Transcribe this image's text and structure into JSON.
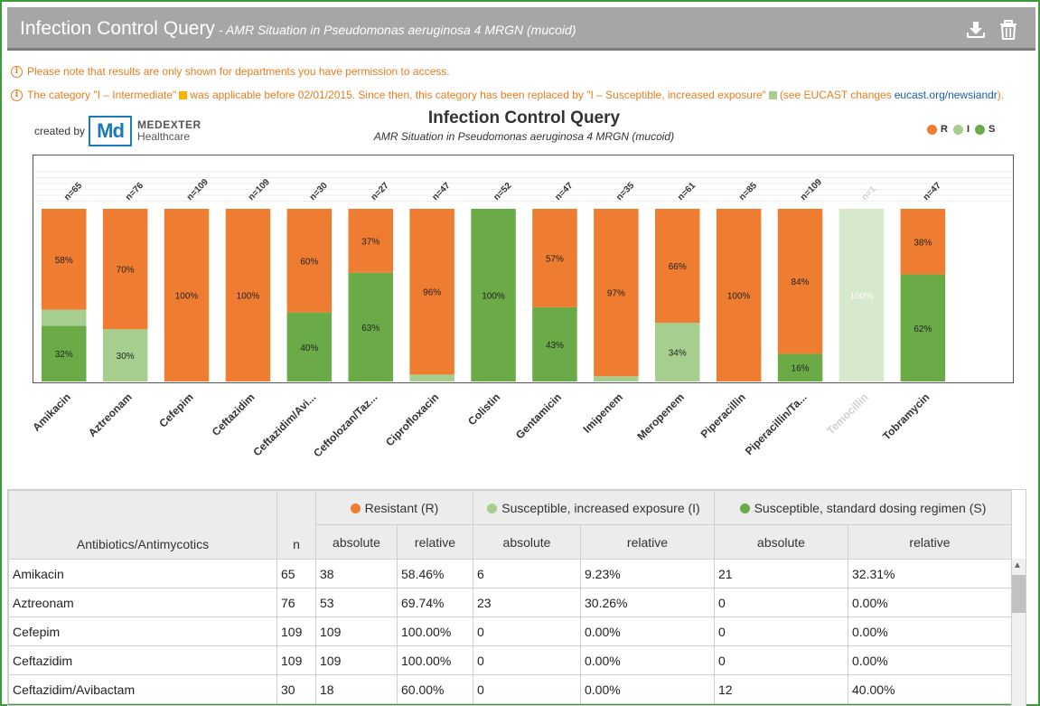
{
  "header": {
    "title": "Infection Control Query",
    "subtitle": "- AMR Situation in Pseudomonas aeruginosa 4 MRGN (mucoid)",
    "download_icon": "download-icon",
    "delete_icon": "trash-icon"
  },
  "notes": {
    "permission": "Please note that results are only shown for departments you have permission to access.",
    "category_a": "The category \"I – Intermediate\"",
    "category_b": "was applicable before 02/01/2015. Since then, this category has been replaced by \"I – Susceptible, increased exposure\"",
    "category_c": "(see EUCAST changes",
    "link": "eucast.org/newsiandr",
    "category_d": ")."
  },
  "brand": {
    "created_by": "created by",
    "logo_mark": "Md",
    "name_line1": "MEDEXTER",
    "name_line2": "Healthcare"
  },
  "colors": {
    "resistant": "#ef7d31",
    "intermediate": "#a6cf8f",
    "susceptible": "#6aab47",
    "intermediate_note": "#f4b400"
  },
  "chart_data": {
    "type": "bar",
    "title": "Infection Control Query",
    "subtitle": "AMR Situation in Pseudomonas aeruginosa 4 MRGN (mucoid)",
    "stacked": true,
    "legend": {
      "position": "top-right",
      "items": [
        "R",
        "I",
        "S"
      ]
    },
    "categories": [
      "Amikacin",
      "Aztreonam",
      "Cefepim",
      "Ceftazidim",
      "Ceftazidim/Avi...",
      "Ceftolozan/Taz...",
      "Ciprofloxacin",
      "Colistin",
      "Gentamicin",
      "Imipenem",
      "Meropenem",
      "Piperacillin",
      "Piperacillin/Ta...",
      "Temocillin",
      "Tobramycin"
    ],
    "n_labels": [
      "n=65",
      "n=76",
      "n=109",
      "n=109",
      "n=30",
      "n=27",
      "n=47",
      "n=52",
      "n=47",
      "n=35",
      "n=61",
      "n=85",
      "n=109",
      "n=1",
      "n=47"
    ],
    "disabled": [
      false,
      false,
      false,
      false,
      false,
      false,
      false,
      false,
      false,
      false,
      false,
      false,
      false,
      true,
      false
    ],
    "series": [
      {
        "name": "R",
        "values": [
          58.46,
          69.74,
          100,
          100,
          60,
          37,
          96,
          0,
          57,
          97,
          66,
          100,
          84,
          0,
          38
        ],
        "labels": [
          "58%",
          "70%",
          "100%",
          "100%",
          "60%",
          "37%",
          "96%",
          "",
          "57%",
          "97%",
          "66%",
          "100%",
          "84%",
          "",
          "38%"
        ]
      },
      {
        "name": "I",
        "values": [
          9.23,
          30.26,
          0,
          0,
          0,
          0,
          4,
          0,
          0,
          3,
          34,
          0,
          0,
          100,
          0
        ],
        "labels": [
          "",
          "30%",
          "",
          "",
          "",
          "",
          "",
          "",
          "",
          "",
          "34%",
          "",
          "",
          "100%",
          ""
        ]
      },
      {
        "name": "S",
        "values": [
          32.31,
          0,
          0,
          0,
          40,
          63,
          0,
          100,
          43,
          0,
          0,
          0,
          16,
          0,
          62
        ],
        "labels": [
          "32%",
          "",
          "",
          "",
          "40%",
          "63%",
          "",
          "100%",
          "43%",
          "",
          "",
          "",
          "16%",
          "",
          "62%"
        ]
      }
    ],
    "ylim": [
      0,
      100
    ],
    "grid": true
  },
  "table": {
    "col_antibiotics": "Antibiotics/Antimycotics",
    "col_n": "n",
    "group_r": "Resistant (R)",
    "group_i": "Susceptible, increased exposure (I)",
    "group_s": "Susceptible, standard dosing regimen (S)",
    "sub_absolute": "absolute",
    "sub_relative": "relative",
    "rows": [
      {
        "name": "Amikacin",
        "n": "65",
        "r_abs": "38",
        "r_rel": "58.46%",
        "i_abs": "6",
        "i_rel": "9.23%",
        "s_abs": "21",
        "s_rel": "32.31%"
      },
      {
        "name": "Aztreonam",
        "n": "76",
        "r_abs": "53",
        "r_rel": "69.74%",
        "i_abs": "23",
        "i_rel": "30.26%",
        "s_abs": "0",
        "s_rel": "0.00%"
      },
      {
        "name": "Cefepim",
        "n": "109",
        "r_abs": "109",
        "r_rel": "100.00%",
        "i_abs": "0",
        "i_rel": "0.00%",
        "s_abs": "0",
        "s_rel": "0.00%"
      },
      {
        "name": "Ceftazidim",
        "n": "109",
        "r_abs": "109",
        "r_rel": "100.00%",
        "i_abs": "0",
        "i_rel": "0.00%",
        "s_abs": "0",
        "s_rel": "0.00%"
      },
      {
        "name": "Ceftazidim/Avibactam",
        "n": "30",
        "r_abs": "18",
        "r_rel": "60.00%",
        "i_abs": "0",
        "i_rel": "0.00%",
        "s_abs": "12",
        "s_rel": "40.00%"
      }
    ]
  }
}
